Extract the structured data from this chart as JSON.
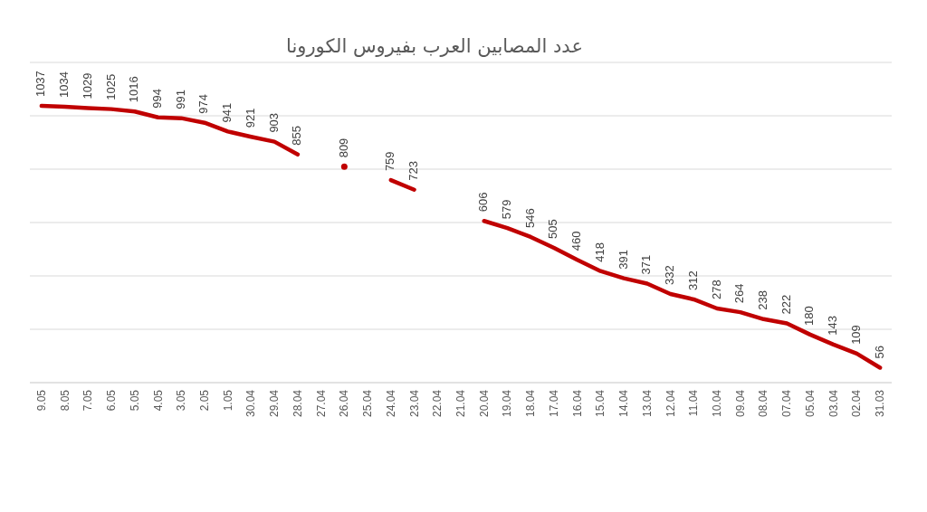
{
  "chart_data": {
    "type": "line",
    "title": "عدد المصابين العرب بفيروس الكورونا",
    "categories": [
      "9.05",
      "8.05",
      "7.05",
      "6.05",
      "5.05",
      "4.05",
      "3.05",
      "2.05",
      "1.05",
      "30.04",
      "29.04",
      "28.04",
      "27.04",
      "26.04",
      "25.04",
      "24.04",
      "23.04",
      "22.04",
      "21.04",
      "20.04",
      "19.04",
      "18.04",
      "17.04",
      "16.04",
      "15.04",
      "14.04",
      "13.04",
      "12.04",
      "11.04",
      "10.04",
      "09.04",
      "08.04",
      "07.04",
      "05.04",
      "03.04",
      "02.04",
      "31.03"
    ],
    "values": [
      1037,
      1034,
      1029,
      1025,
      1016,
      994,
      991,
      974,
      941,
      921,
      903,
      855,
      null,
      809,
      null,
      759,
      723,
      null,
      null,
      606,
      579,
      546,
      505,
      460,
      418,
      391,
      371,
      332,
      312,
      278,
      264,
      238,
      222,
      180,
      143,
      109,
      56
    ],
    "color": "#c00000",
    "data_labels": true,
    "ylim": [
      0,
      1200
    ],
    "yticks": [
      {
        "value": 0,
        "label": null
      },
      {
        "value": 200,
        "label": null
      },
      {
        "value": 400,
        "label": null
      },
      {
        "value": 600,
        "label": null
      },
      {
        "value": 800,
        "label": null
      },
      {
        "value": 1000,
        "label": null
      },
      {
        "value": 1200,
        "label": null
      }
    ],
    "grid": "y",
    "tick_labels": "x",
    "marker": "none",
    "line_style": "solid"
  }
}
